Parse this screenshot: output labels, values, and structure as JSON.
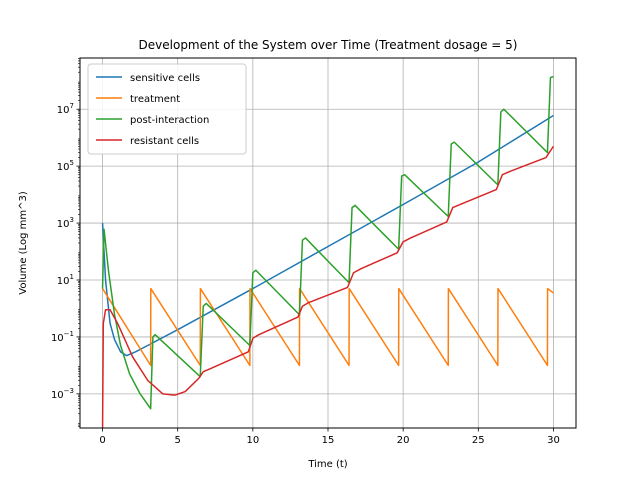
{
  "chart_data": {
    "type": "line",
    "title": "Development of the System over Time (Treatment dosage = 5)",
    "xlabel": "Time (t)",
    "ylabel": "Volume (Log mm^3)",
    "xscale": "linear",
    "yscale": "log",
    "xlim": [
      -1.5,
      31.5
    ],
    "ylim_exponent": [
      -4.2,
      8.8
    ],
    "x_ticks": [
      0,
      5,
      10,
      15,
      20,
      25,
      30
    ],
    "x_tick_labels": [
      "0",
      "5",
      "10",
      "15",
      "20",
      "25",
      "30"
    ],
    "y_tick_exponents": [
      -3,
      -1,
      1,
      3,
      5,
      7
    ],
    "grid": true,
    "legend_position": "upper-left",
    "series": [
      {
        "name": "sensitive cells",
        "color": "#1f77b4",
        "points": [
          [
            0,
            1000
          ],
          [
            0.2,
            10
          ],
          [
            0.5,
            0.3
          ],
          [
            0.8,
            0.08
          ],
          [
            1.2,
            0.03
          ],
          [
            1.6,
            0.022
          ],
          [
            2.2,
            0.03
          ],
          [
            3.0,
            0.05
          ],
          [
            5,
            0.18
          ],
          [
            10,
            5
          ],
          [
            15,
            150
          ],
          [
            20,
            4500
          ],
          [
            25,
            140000.0
          ],
          [
            30,
            6000000.0
          ]
        ]
      },
      {
        "name": "treatment",
        "color": "#ff7f0e",
        "points": [
          [
            0,
            5
          ],
          [
            3.2,
            0.01
          ],
          [
            3.21,
            5
          ],
          [
            6.5,
            0.01
          ],
          [
            6.51,
            5
          ],
          [
            9.8,
            0.01
          ],
          [
            9.81,
            5
          ],
          [
            13.1,
            0.01
          ],
          [
            13.11,
            5
          ],
          [
            16.4,
            0.01
          ],
          [
            16.41,
            5
          ],
          [
            19.7,
            0.01
          ],
          [
            19.71,
            5
          ],
          [
            23.0,
            0.01
          ],
          [
            23.01,
            5
          ],
          [
            26.3,
            0.01
          ],
          [
            26.31,
            5
          ],
          [
            29.6,
            0.01
          ],
          [
            29.61,
            5
          ],
          [
            30,
            3.5
          ]
        ]
      },
      {
        "name": "post-interaction",
        "color": "#2ca02c",
        "points": [
          [
            0,
            5
          ],
          [
            0.1,
            600
          ],
          [
            0.4,
            20
          ],
          [
            0.8,
            0.6
          ],
          [
            1.2,
            0.05
          ],
          [
            1.8,
            0.005
          ],
          [
            2.5,
            0.001
          ],
          [
            3.2,
            0.0003
          ],
          [
            3.35,
            0.1
          ],
          [
            3.5,
            0.12
          ],
          [
            6.5,
            0.004
          ],
          [
            6.7,
            1.2
          ],
          [
            6.9,
            1.5
          ],
          [
            9.8,
            0.05
          ],
          [
            10.0,
            18
          ],
          [
            10.2,
            22
          ],
          [
            13.1,
            0.6
          ],
          [
            13.3,
            250
          ],
          [
            13.5,
            300
          ],
          [
            16.4,
            8
          ],
          [
            16.6,
            3500
          ],
          [
            16.8,
            4200
          ],
          [
            19.7,
            120
          ],
          [
            19.9,
            45000
          ],
          [
            20.1,
            50000
          ],
          [
            23.0,
            1700
          ],
          [
            23.2,
            600000.0
          ],
          [
            23.4,
            700000.0
          ],
          [
            26.3,
            22000
          ],
          [
            26.5,
            8000000.0
          ],
          [
            26.7,
            10000000.0
          ],
          [
            29.6,
            300000.0
          ],
          [
            29.8,
            130000000.0
          ],
          [
            30,
            140000000.0
          ]
        ]
      },
      {
        "name": "resistant cells",
        "color": "#d62728",
        "points": [
          [
            0,
            5e-05
          ],
          [
            0.05,
            0.3
          ],
          [
            0.2,
            0.9
          ],
          [
            0.5,
            0.9
          ],
          [
            1,
            0.3
          ],
          [
            2,
            0.02
          ],
          [
            3,
            0.003
          ],
          [
            4,
            0.001
          ],
          [
            4.8,
            0.0009
          ],
          [
            5.5,
            0.0012
          ],
          [
            6.4,
            0.0035
          ],
          [
            6.7,
            0.006
          ],
          [
            7,
            0.007
          ],
          [
            9.7,
            0.03
          ],
          [
            10.0,
            0.09
          ],
          [
            10.4,
            0.12
          ],
          [
            13.0,
            0.5
          ],
          [
            13.3,
            1.2
          ],
          [
            13.7,
            1.6
          ],
          [
            16.3,
            5.5
          ],
          [
            16.7,
            18
          ],
          [
            17.2,
            25
          ],
          [
            19.6,
            90
          ],
          [
            20.0,
            220
          ],
          [
            20.5,
            300
          ],
          [
            22.9,
            1100
          ],
          [
            23.3,
            3500
          ],
          [
            23.8,
            4500
          ],
          [
            26.2,
            15000
          ],
          [
            26.6,
            50000
          ],
          [
            27.1,
            65000
          ],
          [
            29.5,
            200000.0
          ],
          [
            30,
            500000.0
          ]
        ]
      }
    ]
  }
}
